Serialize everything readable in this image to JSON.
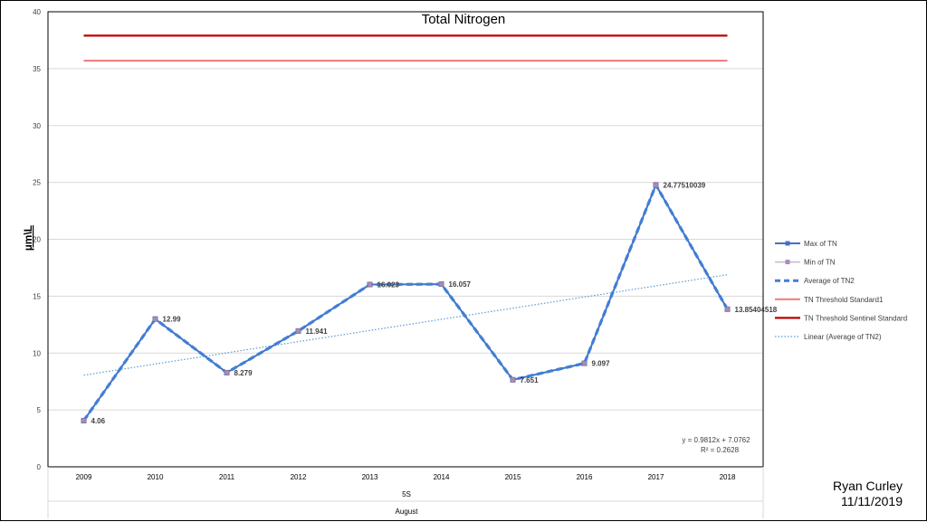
{
  "author": {
    "name": "Ryan Curley",
    "date": "11/11/2019"
  },
  "chart_data": {
    "type": "line",
    "title": "Total Nitrogen",
    "ylabel": "µm\\L",
    "xlabel_rows": [
      "5S",
      "August"
    ],
    "categories": [
      "2009",
      "2010",
      "2011",
      "2012",
      "2013",
      "2014",
      "2015",
      "2016",
      "2017",
      "2018"
    ],
    "ylim": [
      0,
      40
    ],
    "yticks": [
      0,
      5,
      10,
      15,
      20,
      25,
      30,
      35,
      40
    ],
    "grid": true,
    "legend_position": "right",
    "series": [
      {
        "name": "Max of TN",
        "values": [
          4.06,
          12.99,
          8.279,
          11.941,
          16.023,
          16.057,
          7.651,
          9.097,
          24.77510039,
          13.85404518
        ],
        "color": "#4472c4",
        "style": "solid-marker"
      },
      {
        "name": "Min of TN",
        "values": [
          4.06,
          12.99,
          8.279,
          11.941,
          16.023,
          16.057,
          7.651,
          9.097,
          24.77510039,
          13.85404518
        ],
        "color": "#a88cb5",
        "style": "marker-only"
      },
      {
        "name": "Average of TN2",
        "values": [
          4.06,
          12.99,
          8.279,
          11.941,
          16.023,
          16.057,
          7.651,
          9.097,
          24.77510039,
          13.85404518
        ],
        "color": "#3f7fd6",
        "style": "dashed"
      },
      {
        "name": "TN Threshold Standard1",
        "values": [
          35.7,
          35.7,
          35.7,
          35.7,
          35.7,
          35.7,
          35.7,
          35.7,
          35.7,
          35.7
        ],
        "color": "#f08080",
        "style": "solid"
      },
      {
        "name": "TN Threshold Sentinel Standard",
        "values": [
          37.9,
          37.9,
          37.9,
          37.9,
          37.9,
          37.9,
          37.9,
          37.9,
          37.9,
          37.9
        ],
        "color": "#c00000",
        "style": "solid"
      },
      {
        "name": "Linear (Average of TN2)",
        "trend": {
          "slope": 0.9812,
          "intercept": 7.0762
        },
        "color": "#5b9bd5",
        "style": "dotted"
      }
    ],
    "data_labels": [
      "4.06",
      "12.99",
      "8.279",
      "11.941",
      "16.023",
      "16.057",
      "7.651",
      "9.097",
      "24.77510039",
      "13.85404518"
    ],
    "annotations": [
      "y = 0.9812x + 7.0762",
      "R² = 0.2628"
    ]
  }
}
